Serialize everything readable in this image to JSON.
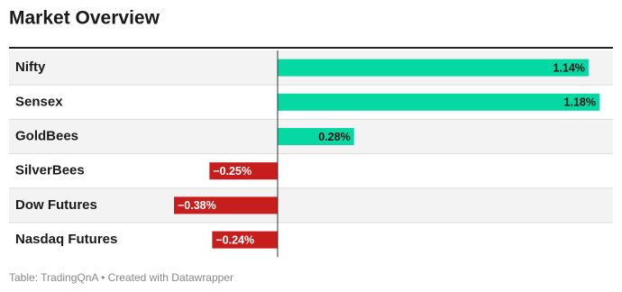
{
  "chart_data": {
    "type": "bar",
    "orientation": "horizontal",
    "title": "Market Overview",
    "categories": [
      "Nifty",
      "Sensex",
      "GoldBees",
      "SilverBees",
      "Dow Futures",
      "Nasdaq Futures"
    ],
    "values": [
      1.14,
      1.18,
      0.28,
      -0.25,
      -0.38,
      -0.24
    ],
    "value_labels": [
      "1.14%",
      "1.18%",
      "0.28%",
      "−0.25%",
      "−0.38%",
      "−0.24%"
    ],
    "positive_color": "#05d8a3",
    "negative_color": "#c71e1d",
    "footer": "Table: TradingQnA • Created with Datawrapper"
  }
}
